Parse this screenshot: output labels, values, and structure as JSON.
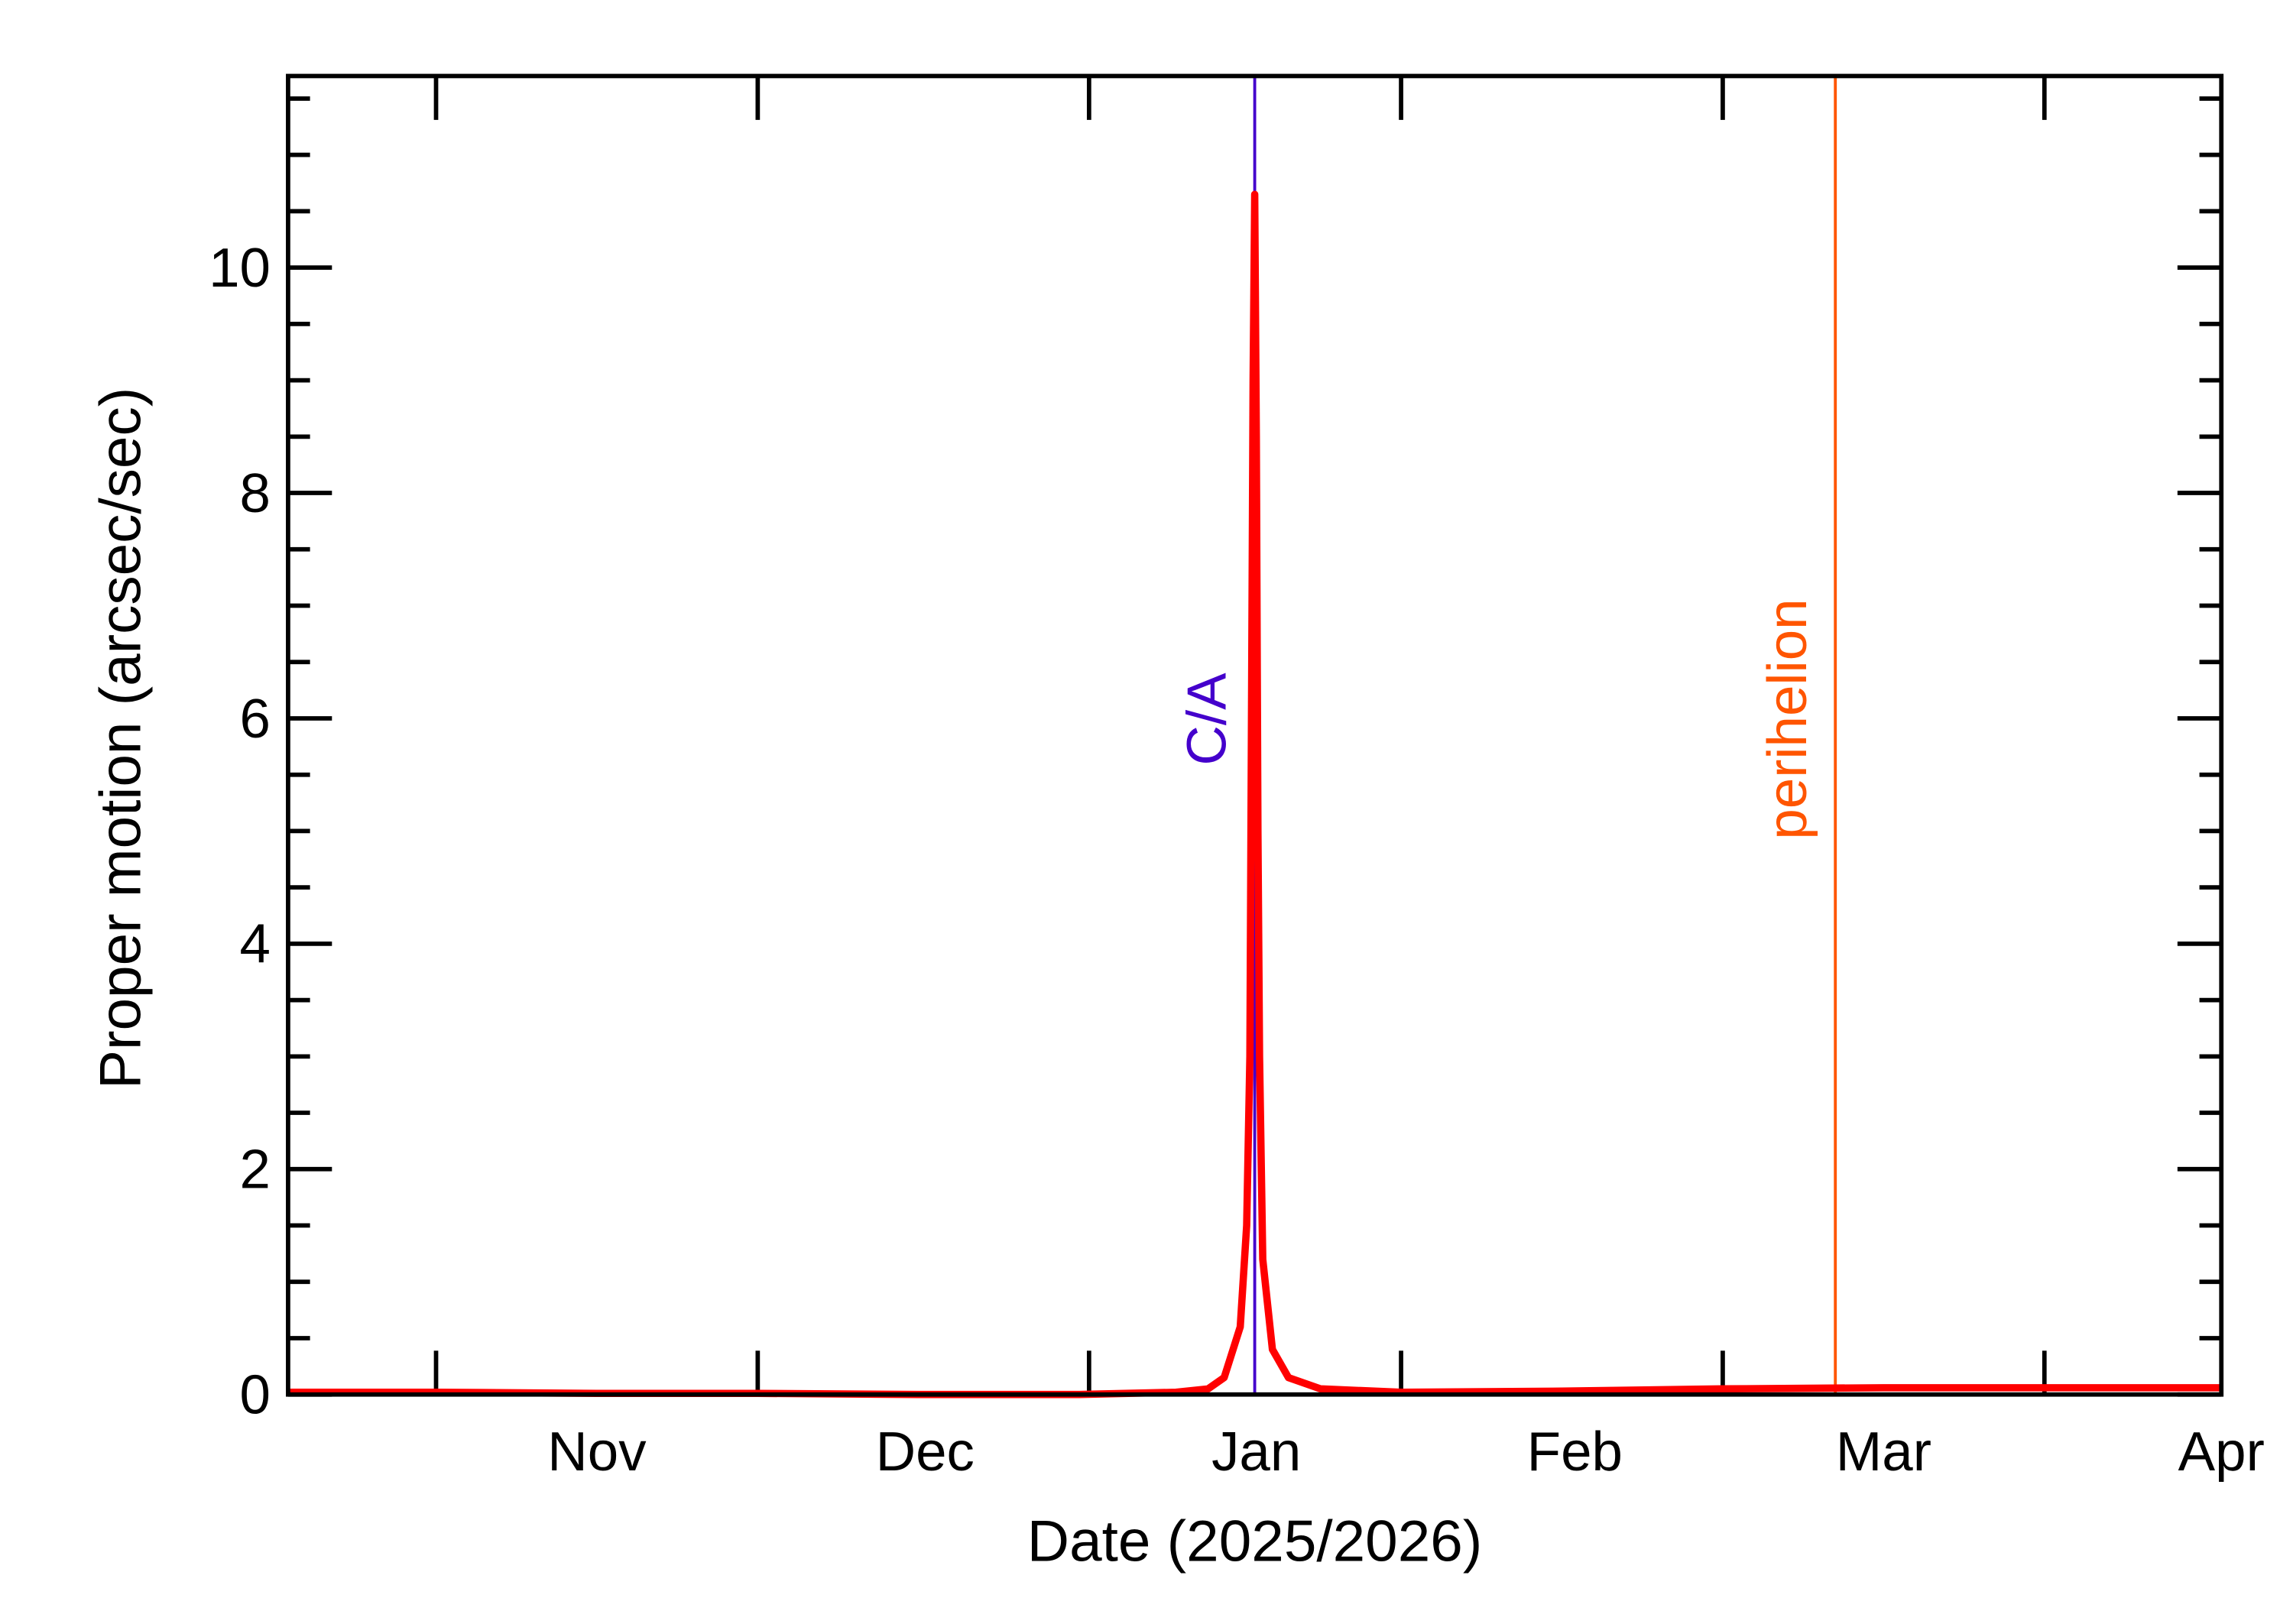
{
  "chart_data": {
    "type": "line",
    "x_label": "Date (2025/2026)",
    "y_label": "Proper motion (arcsec/sec)",
    "xlim": [
      -0.46,
      5.55
    ],
    "xticks": [
      {
        "value": 0.5,
        "label": "Nov"
      },
      {
        "value": 1.52,
        "label": "Dec"
      },
      {
        "value": 2.55,
        "label": "Jan"
      },
      {
        "value": 3.54,
        "label": "Feb"
      },
      {
        "value": 4.5,
        "label": "Mar"
      },
      {
        "value": 5.55,
        "label": "Apr"
      }
    ],
    "xtick_marks": [
      0,
      1,
      2.03,
      3.0,
      4.0,
      5.0
    ],
    "ylim": [
      0,
      11.7
    ],
    "yticks": [
      0,
      2,
      4,
      6,
      8,
      10
    ],
    "series": [
      {
        "name": "Proper motion",
        "color": "#ff0000",
        "x": [
          -0.46,
          0.0,
          0.5,
          1.0,
          1.5,
          2.0,
          2.3,
          2.4,
          2.45,
          2.5,
          2.52,
          2.53,
          2.535,
          2.54,
          2.545,
          2.55,
          2.555,
          2.56,
          2.57,
          2.6,
          2.65,
          2.75,
          3.0,
          3.5,
          4.0,
          4.5,
          5.0,
          5.55
        ],
        "values": [
          0.02,
          0.02,
          0.01,
          0.01,
          0.0,
          0.0,
          0.02,
          0.05,
          0.15,
          0.6,
          1.5,
          3,
          6,
          9,
          10.65,
          8.5,
          5,
          3,
          1.2,
          0.4,
          0.15,
          0.05,
          0.02,
          0.03,
          0.05,
          0.06,
          0.06,
          0.06
        ]
      }
    ],
    "markers": [
      {
        "label": "C/A",
        "x": 2.545,
        "color": "#4400cc"
      },
      {
        "label": "perihelion",
        "x": 4.35,
        "color": "#ff5500"
      }
    ]
  }
}
